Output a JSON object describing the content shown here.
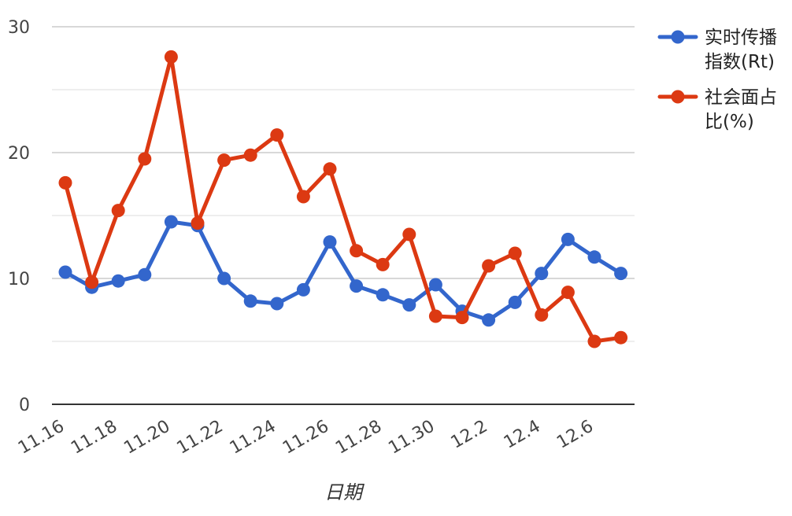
{
  "chart_data": {
    "type": "line",
    "title": "",
    "xlabel": "日期",
    "ylabel": "",
    "ylim": [
      0,
      30
    ],
    "yticks": [
      0,
      10,
      20,
      30
    ],
    "grid": true,
    "legend_position": "right",
    "categories": [
      "11.16",
      "11.17",
      "11.18",
      "11.19",
      "11.20",
      "11.21",
      "11.22",
      "11.23",
      "11.24",
      "11.25",
      "11.26",
      "11.27",
      "11.28",
      "11.29",
      "11.30",
      "12.1",
      "12.2",
      "12.3",
      "12.4",
      "12.5",
      "12.6",
      "12.7"
    ],
    "x_tick_labels": [
      "11.16",
      "11.18",
      "11.20",
      "11.22",
      "11.24",
      "11.26",
      "11.28",
      "11.30",
      "12.2",
      "12.4",
      "12.6"
    ],
    "series": [
      {
        "name_lines": [
          "实时传播",
          "指数(Rt)"
        ],
        "color": "#3366cc",
        "values": [
          10.5,
          9.3,
          9.8,
          10.3,
          14.5,
          14.2,
          10.0,
          8.2,
          8.0,
          9.1,
          12.9,
          9.4,
          8.7,
          7.9,
          9.5,
          7.4,
          6.7,
          8.1,
          10.4,
          13.1,
          11.7,
          10.4
        ]
      },
      {
        "name_lines": [
          "社会面占",
          "比(%)"
        ],
        "color": "#dc3912",
        "values": [
          17.6,
          9.7,
          15.4,
          19.5,
          27.6,
          14.4,
          19.4,
          19.8,
          21.4,
          16.5,
          18.7,
          12.2,
          11.1,
          13.5,
          7.0,
          6.9,
          11.0,
          12.0,
          7.1,
          8.9,
          5.0,
          5.3
        ]
      }
    ]
  }
}
